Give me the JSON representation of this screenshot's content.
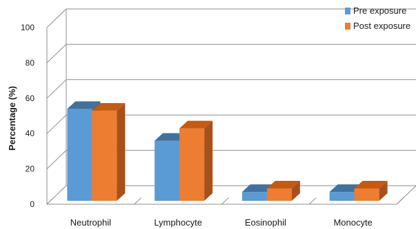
{
  "chart_data": {
    "type": "bar",
    "style": "3d-clustered-column",
    "categories": [
      "Neutrophil",
      "Lymphocyte",
      "Eosinophil",
      "Monocyte"
    ],
    "series": [
      {
        "name": "Pre exposure",
        "values": [
          52,
          34,
          5,
          5
        ],
        "color": "#5b9bd5",
        "top_color": "#41719c",
        "side_color": "#3a6a94"
      },
      {
        "name": "Post exposure",
        "values": [
          51,
          41,
          7,
          7
        ],
        "color": "#ed7d31",
        "top_color": "#c55a11",
        "side_color": "#a9501a"
      }
    ],
    "ylabel": "Percentage (%)",
    "xlabel": "",
    "ylim": [
      0,
      100
    ],
    "yticks": [
      0,
      20,
      40,
      60,
      80,
      100
    ],
    "grid": true,
    "legend_position": "top-right",
    "title": ""
  }
}
